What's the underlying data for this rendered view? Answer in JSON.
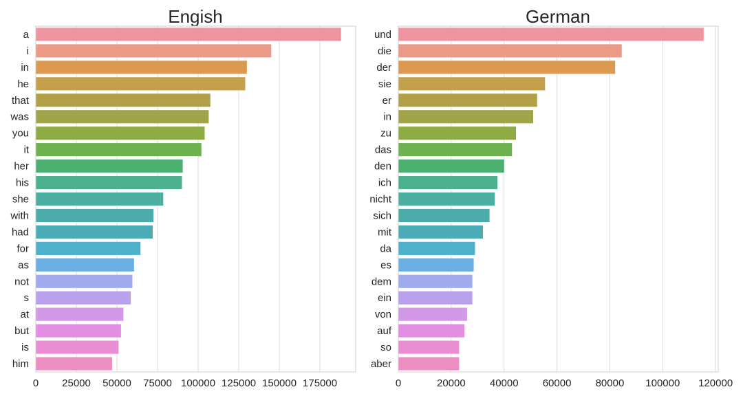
{
  "chart_data": [
    {
      "type": "bar",
      "orientation": "horizontal",
      "title": "Engish",
      "xlabel": "",
      "ylabel": "",
      "xlim": [
        0,
        197000
      ],
      "xticks": [
        0,
        25000,
        50000,
        75000,
        100000,
        125000,
        150000,
        175000
      ],
      "grid": true,
      "categories": [
        "a",
        "i",
        "in",
        "he",
        "that",
        "was",
        "you",
        "it",
        "her",
        "his",
        "she",
        "with",
        "had",
        "for",
        "as",
        "not",
        "s",
        "at",
        "but",
        "is",
        "him"
      ],
      "values": [
        188000,
        145000,
        130000,
        129000,
        107500,
        106500,
        104000,
        102000,
        90500,
        90000,
        78500,
        72500,
        72000,
        64500,
        60500,
        59500,
        58500,
        54000,
        52500,
        51000,
        47000
      ]
    },
    {
      "type": "bar",
      "orientation": "horizontal",
      "title": "German",
      "xlabel": "",
      "ylabel": "",
      "xlim": [
        0,
        121000
      ],
      "xticks": [
        0,
        20000,
        40000,
        60000,
        80000,
        100000,
        120000
      ],
      "grid": true,
      "categories": [
        "und",
        "die",
        "der",
        "sie",
        "er",
        "in",
        "zu",
        "das",
        "den",
        "ich",
        "nicht",
        "sich",
        "mit",
        "da",
        "es",
        "dem",
        "ein",
        "von",
        "auf",
        "so",
        "aber"
      ],
      "values": [
        115500,
        84500,
        82000,
        55500,
        52500,
        51000,
        44500,
        43000,
        40000,
        37500,
        36500,
        34500,
        32000,
        29000,
        28500,
        28000,
        28000,
        26000,
        25000,
        23000,
        23000
      ]
    }
  ],
  "palette": [
    "#ef95a2",
    "#ea9a86",
    "#dc9950",
    "#c5a04c",
    "#b1a047",
    "#a1a348",
    "#8fab44",
    "#6db24f",
    "#4cb170",
    "#4bb08e",
    "#4aaea1",
    "#4baca9",
    "#4aacb6",
    "#4db1cb",
    "#6aaee4",
    "#a0abee",
    "#b9a1ed",
    "#d199e6",
    "#e28ee2",
    "#ea8ed4",
    "#eb8fc0"
  ]
}
